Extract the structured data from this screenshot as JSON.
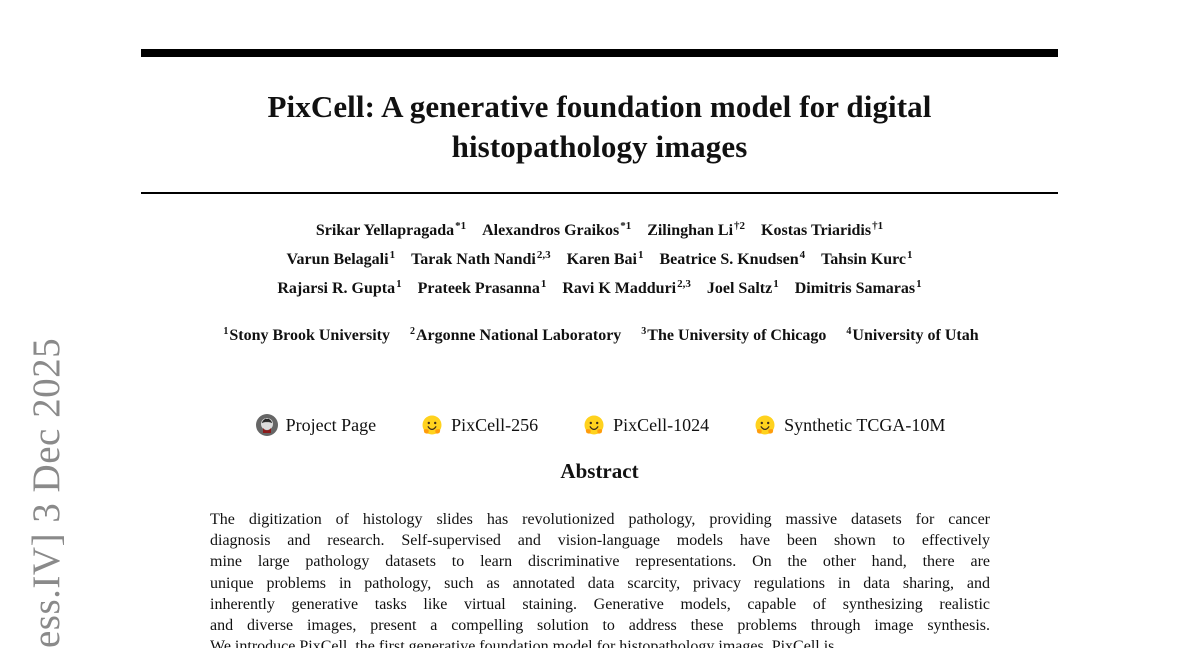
{
  "paper": {
    "title_lines": [
      "PixCell: A generative foundation model for digital",
      "histopathology images"
    ],
    "authors": [
      [
        {
          "name": "Srikar Yellapragada",
          "mark": "*1"
        },
        {
          "name": "Alexandros Graikos",
          "mark": "*1"
        },
        {
          "name": "Zilinghan Li",
          "mark": "†2"
        },
        {
          "name": "Kostas Triaridis",
          "mark": "†1"
        }
      ],
      [
        {
          "name": "Varun Belagali",
          "mark": "1"
        },
        {
          "name": "Tarak Nath Nandi",
          "mark": "2,3"
        },
        {
          "name": "Karen Bai",
          "mark": "1"
        },
        {
          "name": "Beatrice S. Knudsen",
          "mark": "4"
        },
        {
          "name": "Tahsin Kurc",
          "mark": "1"
        }
      ],
      [
        {
          "name": "Rajarsi R. Gupta",
          "mark": "1"
        },
        {
          "name": "Prateek Prasanna",
          "mark": "1"
        },
        {
          "name": "Ravi K Madduri",
          "mark": "2,3"
        },
        {
          "name": "Joel Saltz",
          "mark": "1"
        },
        {
          "name": "Dimitris Samaras",
          "mark": "1"
        }
      ]
    ],
    "affiliations": [
      {
        "mark": "1",
        "name": "Stony Brook University"
      },
      {
        "mark": "2",
        "name": "Argonne National Laboratory"
      },
      {
        "mark": "3",
        "name": "The University of Chicago"
      },
      {
        "mark": "4",
        "name": "University of Utah"
      }
    ],
    "links": [
      {
        "label": "Project Page",
        "icon": "github-icon"
      },
      {
        "label": "PixCell-256",
        "icon": "hugging-face-icon"
      },
      {
        "label": "PixCell-1024",
        "icon": "hugging-face-icon"
      },
      {
        "label": "Synthetic TCGA-10M",
        "icon": "hugging-face-icon"
      }
    ],
    "abstract_heading": "Abstract",
    "abstract_lines": [
      "The digitization of histology slides has revolutionized pathology, providing massive datasets for cancer",
      "diagnosis and research. Self-supervised and vision-language models have been shown to effectively",
      "mine large pathology datasets to learn discriminative representations. On the other hand, there are",
      "unique problems in pathology, such as annotated data scarcity, privacy regulations in data sharing, and",
      "inherently generative tasks like virtual staining. Generative models, capable of synthesizing realistic",
      "and diverse images, present a compelling solution to address these problems through image synthesis.",
      "We introduce PixCell, the first generative foundation model for histopathology images. PixCell is"
    ],
    "side_stamp": "ess.IV]   3 Dec 2025"
  },
  "colors": {
    "text": "#111111",
    "rule": "#000000",
    "stamp": "#8a8a8a"
  }
}
